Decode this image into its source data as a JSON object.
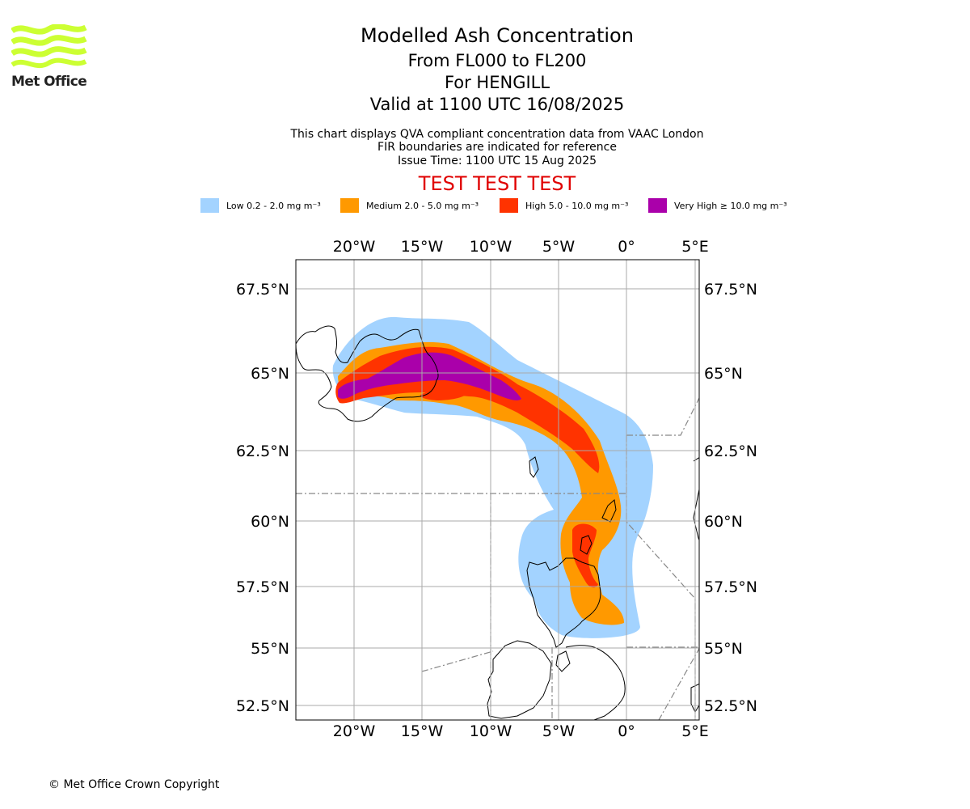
{
  "logo": {
    "name": "Met Office",
    "color": "#ccff33"
  },
  "header": {
    "title": "Modelled Ash Concentration",
    "levels": "From FL000 to FL200",
    "location": "For HENGILL",
    "valid": "Valid at 1100 UTC 16/08/2025",
    "note1": "This chart displays QVA compliant concentration data from VAAC London",
    "note2": "FIR boundaries are indicated for reference",
    "issue": "Issue Time: 1100 UTC 15 Aug 2025",
    "warning": "TEST TEST TEST"
  },
  "legend": [
    {
      "label": "Low 0.2 - 2.0 mg m⁻³",
      "color": "#a3d3ff"
    },
    {
      "label": "Medium 2.0 - 5.0 mg m⁻³",
      "color": "#ff9900"
    },
    {
      "label": "High 5.0 - 10.0 mg m⁻³",
      "color": "#ff3300"
    },
    {
      "label": "Very High ≥ 10.0 mg m⁻³",
      "color": "#aa00aa"
    }
  ],
  "map": {
    "lon_ticks": [
      "20°W",
      "15°W",
      "10°W",
      "5°W",
      "0°",
      "5°E"
    ],
    "lat_ticks": [
      "67.5°N",
      "65°N",
      "62.5°N",
      "60°N",
      "57.5°N",
      "55°N",
      "52.5°N"
    ]
  },
  "footer": {
    "copyright": "© Met Office Crown Copyright"
  }
}
